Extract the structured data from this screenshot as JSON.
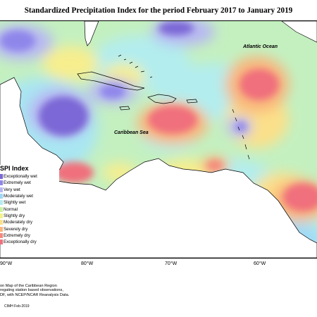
{
  "title": "Standardized Precipitation Index for the period February 2017 to January 2019",
  "labels": {
    "atlantic": "Atlantic Ocean",
    "caribbean": "Caribbean Sea"
  },
  "legend": {
    "title": "SPI Index",
    "items": [
      {
        "label": "Exceptionally wet",
        "color": "#7b68d6"
      },
      {
        "label": "Extremely wet",
        "color": "#8f86ea"
      },
      {
        "label": "Very wet",
        "color": "#b7b7f3"
      },
      {
        "label": "Moderately wet",
        "color": "#9fd8f7"
      },
      {
        "label": "Slightly wet",
        "color": "#b5ecf0"
      },
      {
        "label": "Normal",
        "color": "#c8f2a0"
      },
      {
        "label": "Slightly dry",
        "color": "#f4f28a"
      },
      {
        "label": "Moderately dry",
        "color": "#fbe08a"
      },
      {
        "label": "Severely dry",
        "color": "#f9b57b"
      },
      {
        "label": "Extremely dry",
        "color": "#f58a7d"
      },
      {
        "label": "Exceptionally dry",
        "color": "#f0707d"
      }
    ]
  },
  "axis": {
    "ticks": [
      "90°W",
      "80°W",
      "70°W",
      "60°W"
    ]
  },
  "footnote": {
    "lines": [
      "on Map of the Caribbean Region",
      "regating station based observations,",
      "DF, with NCEP/NCAR Reanalysis Data."
    ]
  },
  "credit": "CIMH Feb-2019"
}
